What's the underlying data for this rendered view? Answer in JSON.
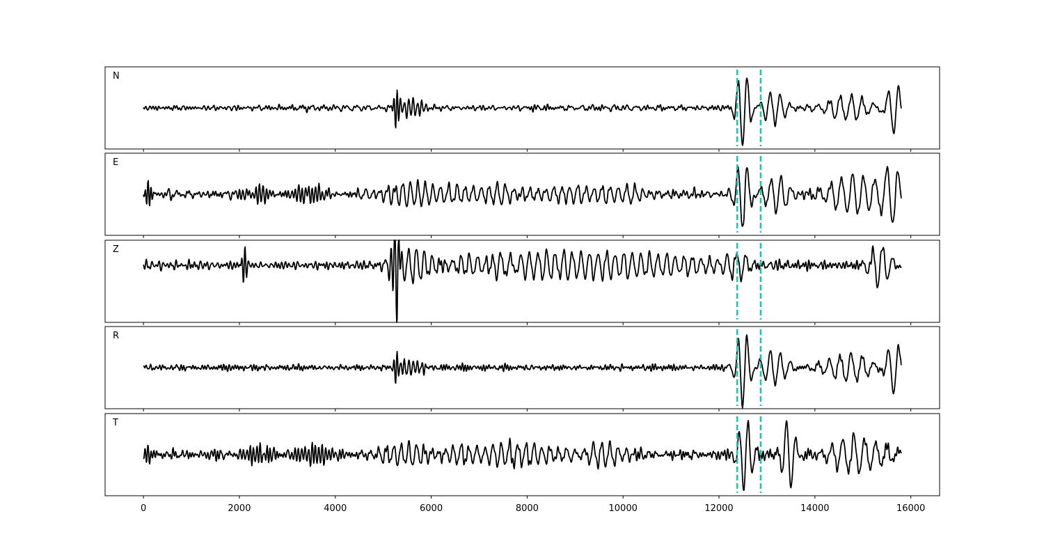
{
  "chart_data": {
    "type": "line",
    "xlim": [
      -800,
      16600
    ],
    "x_ticks": [
      0,
      2000,
      4000,
      6000,
      8000,
      10000,
      12000,
      14000,
      16000
    ],
    "x_tick_labels": [
      "0",
      "2000",
      "4000",
      "6000",
      "8000",
      "10000",
      "12000",
      "14000",
      "16000"
    ],
    "sample_count": 15800,
    "line_color": "#000000",
    "marker_color": "#1fc3b3",
    "markers": [
      12380,
      12870
    ],
    "grid": false,
    "panels": [
      {
        "label": "N",
        "series": {
          "baseline": 0,
          "noise": 0.1,
          "quiet_from": 0,
          "events": [
            {
              "x": 5270,
              "amp": 0.55,
              "width": 45,
              "freq": 70
            },
            {
              "x": 5600,
              "amp": 0.2,
              "width": 200,
              "freq": 90
            },
            {
              "x": 12500,
              "amp": 1.0,
              "width": 120,
              "freq": 190
            },
            {
              "x": 13150,
              "amp": 0.4,
              "width": 220,
              "freq": 210
            },
            {
              "x": 14700,
              "amp": 0.3,
              "width": 400,
              "freq": 230
            },
            {
              "x": 15650,
              "amp": 0.65,
              "width": 140,
              "freq": 220
            }
          ]
        },
        "ylim": [
          -1.05,
          1.05
        ]
      },
      {
        "label": "E",
        "series": {
          "baseline": 0,
          "noise": 0.14,
          "quiet_from": 0,
          "events": [
            {
              "x": 100,
              "amp": 0.25,
              "width": 60,
              "freq": 60
            },
            {
              "x": 2400,
              "amp": 0.15,
              "width": 300,
              "freq": 70
            },
            {
              "x": 3500,
              "amp": 0.18,
              "width": 300,
              "freq": 70
            },
            {
              "x": 5500,
              "amp": 0.35,
              "width": 400,
              "freq": 160
            },
            {
              "x": 7000,
              "amp": 0.2,
              "width": 1200,
              "freq": 170
            },
            {
              "x": 9600,
              "amp": 0.2,
              "width": 800,
              "freq": 170
            },
            {
              "x": 12500,
              "amp": 0.9,
              "width": 130,
              "freq": 200
            },
            {
              "x": 13200,
              "amp": 0.5,
              "width": 250,
              "freq": 210
            },
            {
              "x": 14800,
              "amp": 0.5,
              "width": 500,
              "freq": 230
            },
            {
              "x": 15600,
              "amp": 0.7,
              "width": 160,
              "freq": 230
            }
          ]
        },
        "ylim": [
          -1.05,
          1.05
        ]
      },
      {
        "label": "Z",
        "series": {
          "baseline": 0,
          "noise": 0.12,
          "quiet_from": 0,
          "events": [
            {
              "x": 2100,
              "amp": 0.45,
              "width": 40,
              "freq": 70
            },
            {
              "x": 5260,
              "amp": 1.3,
              "width": 60,
              "freq": 80
            },
            {
              "x": 5700,
              "amp": 0.3,
              "width": 500,
              "freq": 160
            },
            {
              "x": 7450,
              "amp": 0.45,
              "width": 200,
              "freq": 180
            },
            {
              "x": 8000,
              "amp": 0.25,
              "width": 1500,
              "freq": 180
            },
            {
              "x": 10500,
              "amp": 0.2,
              "width": 1500,
              "freq": 180
            },
            {
              "x": 12450,
              "amp": 0.25,
              "width": 200,
              "freq": 200
            },
            {
              "x": 15350,
              "amp": 0.45,
              "width": 180,
              "freq": 210
            }
          ]
        },
        "ylim": [
          -1.25,
          0.55
        ]
      },
      {
        "label": "R",
        "series": {
          "baseline": 0,
          "noise": 0.1,
          "quiet_from": 0,
          "events": [
            {
              "x": 5270,
              "amp": 0.5,
              "width": 45,
              "freq": 70
            },
            {
              "x": 5600,
              "amp": 0.2,
              "width": 200,
              "freq": 90
            },
            {
              "x": 12500,
              "amp": 1.0,
              "width": 120,
              "freq": 190
            },
            {
              "x": 13150,
              "amp": 0.45,
              "width": 220,
              "freq": 210
            },
            {
              "x": 14700,
              "amp": 0.35,
              "width": 400,
              "freq": 230
            },
            {
              "x": 15650,
              "amp": 0.7,
              "width": 140,
              "freq": 220
            }
          ]
        },
        "ylim": [
          -1.05,
          1.05
        ]
      },
      {
        "label": "T",
        "series": {
          "baseline": 0,
          "noise": 0.16,
          "quiet_from": 0,
          "events": [
            {
              "x": 100,
              "amp": 0.25,
              "width": 60,
              "freq": 60
            },
            {
              "x": 2500,
              "amp": 0.18,
              "width": 400,
              "freq": 70
            },
            {
              "x": 3500,
              "amp": 0.2,
              "width": 400,
              "freq": 70
            },
            {
              "x": 5700,
              "amp": 0.35,
              "width": 500,
              "freq": 160
            },
            {
              "x": 7500,
              "amp": 0.25,
              "width": 1400,
              "freq": 170
            },
            {
              "x": 9600,
              "amp": 0.3,
              "width": 400,
              "freq": 170
            },
            {
              "x": 12550,
              "amp": 0.9,
              "width": 130,
              "freq": 190
            },
            {
              "x": 13450,
              "amp": 0.85,
              "width": 120,
              "freq": 200
            },
            {
              "x": 14900,
              "amp": 0.45,
              "width": 500,
              "freq": 230
            }
          ]
        },
        "ylim": [
          -1.05,
          1.05
        ]
      }
    ]
  }
}
